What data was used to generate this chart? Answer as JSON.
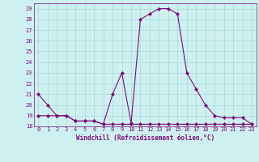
{
  "x": [
    0,
    1,
    2,
    3,
    4,
    5,
    6,
    7,
    8,
    9,
    10,
    11,
    12,
    13,
    14,
    15,
    16,
    17,
    18,
    19,
    20,
    21,
    22,
    23
  ],
  "y_line1": [
    21,
    20,
    19,
    19,
    18.5,
    18.5,
    18.5,
    18.2,
    21,
    23,
    18.3,
    28,
    28.5,
    29,
    29,
    28.5,
    23,
    21.5,
    20,
    19,
    18.8,
    18.8,
    18.8,
    18.2
  ],
  "y_line2": [
    19,
    19,
    19,
    19,
    18.5,
    18.5,
    18.5,
    18.2,
    18.2,
    18.2,
    18.2,
    18.2,
    18.2,
    18.2,
    18.2,
    18.2,
    18.2,
    18.2,
    18.2,
    18.2,
    18.2,
    18.2,
    18.2,
    18.2
  ],
  "line_color": "#7b0c7b",
  "bg_color": "#cff0f0",
  "grid_color": "#aadddd",
  "xlabel": "Windchill (Refroidissement éolien,°C)",
  "ylim": [
    18,
    29.5
  ],
  "xlim": [
    -0.5,
    23.5
  ],
  "yticks": [
    18,
    19,
    20,
    21,
    22,
    23,
    24,
    25,
    26,
    27,
    28,
    29
  ],
  "xticks": [
    0,
    1,
    2,
    3,
    4,
    5,
    6,
    7,
    8,
    9,
    10,
    11,
    12,
    13,
    14,
    15,
    16,
    17,
    18,
    19,
    20,
    21,
    22,
    23
  ]
}
